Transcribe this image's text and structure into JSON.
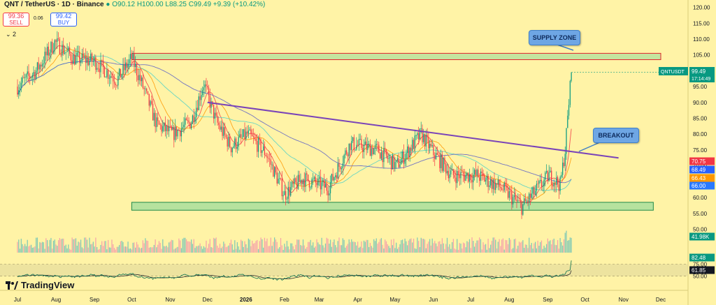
{
  "header": {
    "symbol": "QNT / TetherUS · 1D · Binance",
    "ohlc": "O90.12 H100.00 L88.25 C99.49 +9.39 (+10.42%)",
    "sell_price": "99.36",
    "sell_label": "SELL",
    "buy_price": "99.42",
    "buy_label": "BUY",
    "spread": "0.06",
    "collapse_label": "⌄ 2"
  },
  "callouts": {
    "supply": "SUPPLY ZONE",
    "breakout": "BREAKOUT"
  },
  "logo": "TradingView",
  "chart_data": {
    "type": "candlestick",
    "symbol_tag": "QNTUSDT",
    "last_price": "99.49",
    "countdown": "17:14:49",
    "price_ticks": [
      120,
      115,
      110,
      105,
      100,
      95,
      90,
      85,
      80,
      75,
      70,
      65,
      60,
      55,
      50
    ],
    "price_range": [
      49,
      121
    ],
    "volume_tag": "41.98K",
    "rsi_ticks": [
      75,
      50
    ],
    "rsi_range": [
      25,
      90
    ],
    "rsi_tags": [
      {
        "value": "82.48",
        "color": "#089981"
      },
      {
        "value": "61.85",
        "color": "#131722"
      }
    ],
    "ma_tags": [
      {
        "value": "70.75",
        "color": "#f23645"
      },
      {
        "value": "68.49",
        "color": "#2962ff"
      },
      {
        "value": "66.43",
        "color": "#ff9800"
      },
      {
        "value": "66.00",
        "color": "#2979ff"
      }
    ],
    "x_labels": [
      "Jul",
      "Aug",
      "Sep",
      "Oct",
      "Nov",
      "Dec",
      "2026",
      "Feb",
      "Mar",
      "Apr",
      "May",
      "Jun",
      "Jul",
      "Aug",
      "Sep",
      "Oct",
      "Nov",
      "Dec"
    ],
    "x_label_days": [
      0,
      31,
      62,
      92,
      123,
      153,
      184,
      215,
      243,
      274,
      304,
      335,
      365,
      396,
      427,
      457,
      488,
      518
    ],
    "candles_total_days": 446,
    "key_prices": [
      {
        "day": 0,
        "price": 95
      },
      {
        "day": 15,
        "price": 100
      },
      {
        "day": 30,
        "price": 109
      },
      {
        "day": 45,
        "price": 104
      },
      {
        "day": 62,
        "price": 103
      },
      {
        "day": 80,
        "price": 97
      },
      {
        "day": 92,
        "price": 104
      },
      {
        "day": 100,
        "price": 96
      },
      {
        "day": 112,
        "price": 83
      },
      {
        "day": 125,
        "price": 80
      },
      {
        "day": 140,
        "price": 84
      },
      {
        "day": 150,
        "price": 96
      },
      {
        "day": 160,
        "price": 84
      },
      {
        "day": 172,
        "price": 76
      },
      {
        "day": 185,
        "price": 80
      },
      {
        "day": 200,
        "price": 74
      },
      {
        "day": 215,
        "price": 61
      },
      {
        "day": 230,
        "price": 66
      },
      {
        "day": 250,
        "price": 63
      },
      {
        "day": 268,
        "price": 77
      },
      {
        "day": 290,
        "price": 75
      },
      {
        "day": 305,
        "price": 70
      },
      {
        "day": 325,
        "price": 80
      },
      {
        "day": 335,
        "price": 74
      },
      {
        "day": 350,
        "price": 67
      },
      {
        "day": 370,
        "price": 67
      },
      {
        "day": 390,
        "price": 63
      },
      {
        "day": 406,
        "price": 57
      },
      {
        "day": 415,
        "price": 61
      },
      {
        "day": 428,
        "price": 67
      },
      {
        "day": 437,
        "price": 64
      },
      {
        "day": 441,
        "price": 75
      },
      {
        "day": 444,
        "price": 90
      },
      {
        "day": 446,
        "price": 99.49
      }
    ],
    "supply_zone": {
      "price_low": 103.5,
      "price_high": 105.5,
      "day_start": 92,
      "day_end": 518
    },
    "demand_zone": {
      "price_low": 56,
      "price_high": 58.5,
      "day_start": 92,
      "day_end": 512
    },
    "trendline": {
      "from": {
        "day": 153,
        "price": 90
      },
      "to": {
        "day": 484,
        "price": 72.5
      }
    },
    "colors": {
      "up": "#089981",
      "down": "#f23645",
      "volume_up": "#7fc8b5",
      "volume_down": "#f5a3aa",
      "trendline": "#7a44b8",
      "zone_fill": "#9ddc9b"
    }
  }
}
